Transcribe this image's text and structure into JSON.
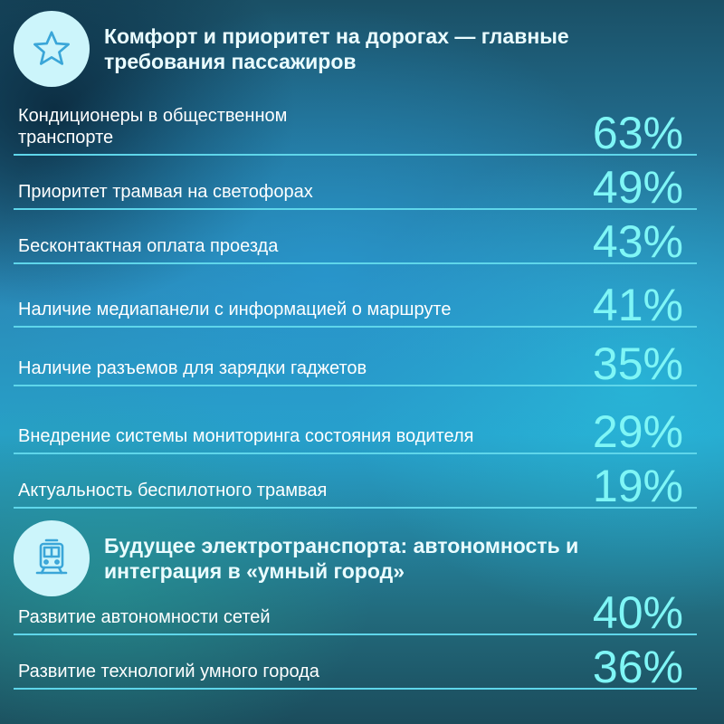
{
  "section1": {
    "icon": "star-icon",
    "title": "Комфорт и приоритет на дорогах — главные требования пассажиров",
    "items": [
      {
        "label": "Кондиционеры в общественном транспорте",
        "value": "63%"
      },
      {
        "label": "Приоритет трамвая на светофорах",
        "value": "49%"
      },
      {
        "label": "Бесконтактная оплата проезда",
        "value": "43%"
      },
      {
        "label": "Наличие медиапанели с информацией о маршруте",
        "value": "41%"
      },
      {
        "label": "Наличие разъемов для зарядки гаджетов",
        "value": "35%"
      },
      {
        "label": "Внедрение системы мониторинга состояния водителя",
        "value": "29%"
      },
      {
        "label": "Актуальность беспилотного трамвая",
        "value": "19%"
      }
    ]
  },
  "section2": {
    "icon": "tram-icon",
    "title": "Будущее электротранспорта: автономность и интеграция в «умный город»",
    "items": [
      {
        "label": "Развитие автономности сетей",
        "value": "40%"
      },
      {
        "label": "Развитие технологий умного города",
        "value": "36%"
      }
    ]
  },
  "colors": {
    "accent": "#7ff6f6",
    "badge": "#ccf5fb",
    "divider": "#5fd6ea"
  }
}
